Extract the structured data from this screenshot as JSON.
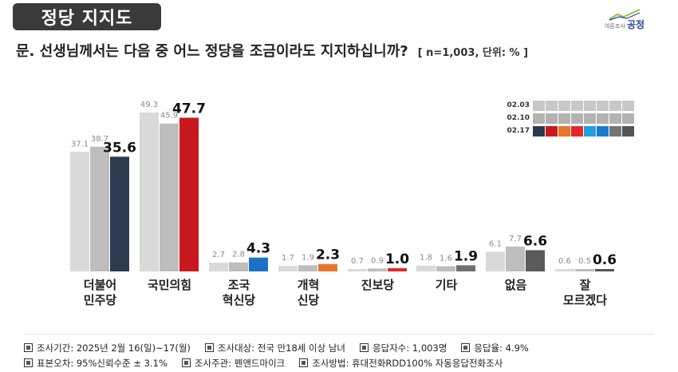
{
  "header": {
    "badge": "정당 지지도",
    "question": "문. 선생님께서는 다음 중 어느 정당을 조금이라도 지지하십니까?",
    "note": "[ n=1,003, 단위: % ]"
  },
  "logo": {
    "small_text": "여론조사",
    "brand": "공정"
  },
  "legend": {
    "rows": [
      {
        "label": "02.03",
        "colors": [
          "#c8c8c8",
          "#c8c8c8",
          "#c8c8c8",
          "#c8c8c8",
          "#c8c8c8",
          "#c8c8c8",
          "#c8c8c8",
          "#c8c8c8"
        ]
      },
      {
        "label": "02.10",
        "colors": [
          "#b3b3b3",
          "#b3b3b3",
          "#b3b3b3",
          "#b3b3b3",
          "#b3b3b3",
          "#b3b3b3",
          "#b3b3b3",
          "#b3b3b3"
        ]
      },
      {
        "label": "02.17",
        "colors": [
          "#2b3a4e",
          "#c8191f",
          "#e8762d",
          "#e8262a",
          "#23a0dc",
          "#1a7ad4",
          "#757575",
          "#555555"
        ]
      }
    ]
  },
  "chart_data": {
    "type": "bar",
    "categories": [
      "더불어\n민주당",
      "국민의힘",
      "조국\n혁신당",
      "개혁\n신당",
      "진보당",
      "기타",
      "없음",
      "잘\n모르겠다"
    ],
    "series": [
      {
        "name": "02.03",
        "values": [
          37.1,
          49.3,
          2.7,
          1.7,
          0.7,
          1.8,
          6.1,
          0.6
        ]
      },
      {
        "name": "02.10",
        "values": [
          38.7,
          45.9,
          2.8,
          1.9,
          0.9,
          1.6,
          7.7,
          0.5
        ]
      },
      {
        "name": "02.17",
        "values": [
          35.6,
          47.7,
          4.3,
          2.3,
          1.0,
          1.9,
          6.6,
          0.6
        ]
      }
    ],
    "ylim": [
      0,
      55
    ],
    "grid": false,
    "legend_position": "top-right",
    "colors": {
      "02.03": "#d9d9d9",
      "02.10": "#bdbdbd",
      "02.17": [
        "#2b3a4e",
        "#c8191f",
        "#1a72c4",
        "#e8762d",
        "#e8262a",
        "#6f6f6f",
        "#5a5a5a",
        "#555555"
      ]
    }
  },
  "footer": {
    "line1": [
      "조사기간: 2025년 2월 16(일)~17(월)",
      "조사대상: 전국 만18세 이상 남녀",
      "응답자수: 1,003명",
      "응답율: 4.9%"
    ],
    "line2": [
      "표본오차: 95%신뢰수준 ± 3.1%",
      "조사주관: 펜앤드마이크",
      "조사방법: 휴대전화RDD100% 자동응답전화조사"
    ]
  }
}
